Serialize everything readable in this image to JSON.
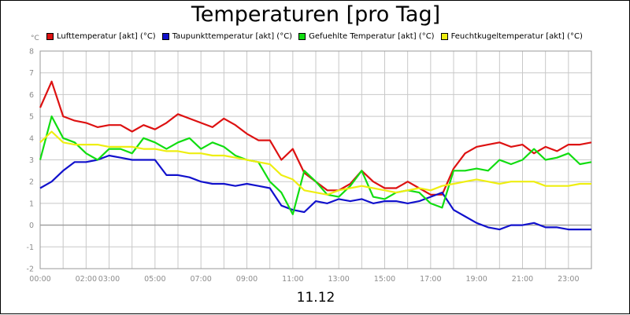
{
  "title": "Temperaturen [pro Tag]",
  "date_label": "11.12",
  "unit_label": "°C",
  "legend": [
    {
      "label": "Lufttemperatur [akt] (°C)",
      "color": "#dd1111"
    },
    {
      "label": "Taupunkttemperatur [akt] (°C)",
      "color": "#1111cc"
    },
    {
      "label": "Gefuehlte Temperatur [akt] (°C)",
      "color": "#11dd11"
    },
    {
      "label": "Feuchtkugeltemperatur [akt] (°C)",
      "color": "#eeee11"
    }
  ],
  "chart_data": {
    "type": "line",
    "title": "Temperaturen [pro Tag]",
    "xlabel": "11.12",
    "ylabel": "°C",
    "x_range_hours": [
      0,
      24
    ],
    "ylim": [
      -2,
      8
    ],
    "y_ticks": [
      8,
      7,
      6,
      5,
      4,
      3,
      2,
      1,
      0,
      -1,
      -2
    ],
    "x_ticks": [
      {
        "hour": 0,
        "label": "00:00"
      },
      {
        "hour": 2,
        "label": "02:00"
      },
      {
        "hour": 3,
        "label": "03:00"
      },
      {
        "hour": 5,
        "label": "05:00"
      },
      {
        "hour": 7,
        "label": "07:00"
      },
      {
        "hour": 9,
        "label": "09:00"
      },
      {
        "hour": 11,
        "label": "11:00"
      },
      {
        "hour": 13,
        "label": "13:00"
      },
      {
        "hour": 15,
        "label": "15:00"
      },
      {
        "hour": 17,
        "label": "17:00"
      },
      {
        "hour": 19,
        "label": "19:00"
      },
      {
        "hour": 21,
        "label": "21:00"
      },
      {
        "hour": 23,
        "label": "23:00"
      }
    ],
    "grid": true,
    "legend_position": "top",
    "x": [
      0,
      0.5,
      1,
      1.5,
      2,
      2.5,
      3,
      3.5,
      4,
      4.5,
      5,
      5.5,
      6,
      6.5,
      7,
      7.5,
      8,
      8.5,
      9,
      9.5,
      10,
      10.5,
      11,
      11.5,
      12,
      12.5,
      13,
      13.5,
      14,
      14.5,
      15,
      15.5,
      16,
      16.5,
      17,
      17.5,
      18,
      18.5,
      19,
      19.5,
      20,
      20.5,
      21,
      21.5,
      22,
      22.5,
      23,
      23.5,
      24
    ],
    "series": [
      {
        "name": "Lufttemperatur [akt] (°C)",
        "color": "#dd1111",
        "values": [
          5.4,
          6.6,
          5.0,
          4.8,
          4.7,
          4.5,
          4.6,
          4.6,
          4.3,
          4.6,
          4.4,
          4.7,
          5.1,
          4.9,
          4.7,
          4.5,
          4.9,
          4.6,
          4.2,
          3.9,
          3.9,
          3.0,
          3.5,
          2.4,
          2.0,
          1.6,
          1.6,
          1.9,
          2.5,
          2.0,
          1.7,
          1.7,
          2.0,
          1.7,
          1.4,
          1.4,
          2.6,
          3.3,
          3.6,
          3.7,
          3.8,
          3.6,
          3.7,
          3.3,
          3.6,
          3.4,
          3.7,
          3.7,
          3.8
        ]
      },
      {
        "name": "Taupunkttemperatur [akt] (°C)",
        "color": "#1111cc",
        "values": [
          1.7,
          2.0,
          2.5,
          2.9,
          2.9,
          3.0,
          3.2,
          3.1,
          3.0,
          3.0,
          3.0,
          2.3,
          2.3,
          2.2,
          2.0,
          1.9,
          1.9,
          1.8,
          1.9,
          1.8,
          1.7,
          0.9,
          0.7,
          0.6,
          1.1,
          1.0,
          1.2,
          1.1,
          1.2,
          1.0,
          1.1,
          1.1,
          1.0,
          1.1,
          1.3,
          1.5,
          0.7,
          0.4,
          0.1,
          -0.1,
          -0.2,
          0.0,
          0.0,
          0.1,
          -0.1,
          -0.1,
          -0.2,
          -0.2,
          -0.2
        ]
      },
      {
        "name": "Gefuehlte Temperatur [akt] (°C)",
        "color": "#11dd11",
        "values": [
          3.0,
          5.0,
          4.0,
          3.8,
          3.3,
          3.0,
          3.5,
          3.5,
          3.3,
          4.0,
          3.8,
          3.5,
          3.8,
          4.0,
          3.5,
          3.8,
          3.6,
          3.2,
          3.0,
          2.9,
          2.0,
          1.5,
          0.5,
          2.5,
          2.0,
          1.4,
          1.3,
          1.8,
          2.5,
          1.3,
          1.2,
          1.5,
          1.6,
          1.5,
          1.0,
          0.8,
          2.5,
          2.5,
          2.6,
          2.5,
          3.0,
          2.8,
          3.0,
          3.5,
          3.0,
          3.1,
          3.3,
          2.8,
          2.9
        ]
      },
      {
        "name": "Feuchtkugeltemperatur [akt] (°C)",
        "color": "#eeee11",
        "values": [
          3.8,
          4.3,
          3.8,
          3.7,
          3.7,
          3.7,
          3.6,
          3.6,
          3.6,
          3.5,
          3.5,
          3.4,
          3.4,
          3.3,
          3.3,
          3.2,
          3.2,
          3.1,
          3.0,
          2.9,
          2.8,
          2.3,
          2.1,
          1.6,
          1.5,
          1.4,
          1.6,
          1.7,
          1.8,
          1.7,
          1.6,
          1.5,
          1.6,
          1.7,
          1.6,
          1.8,
          1.9,
          2.0,
          2.1,
          2.0,
          1.9,
          2.0,
          2.0,
          2.0,
          1.8,
          1.8,
          1.8,
          1.9,
          1.9
        ]
      }
    ]
  }
}
